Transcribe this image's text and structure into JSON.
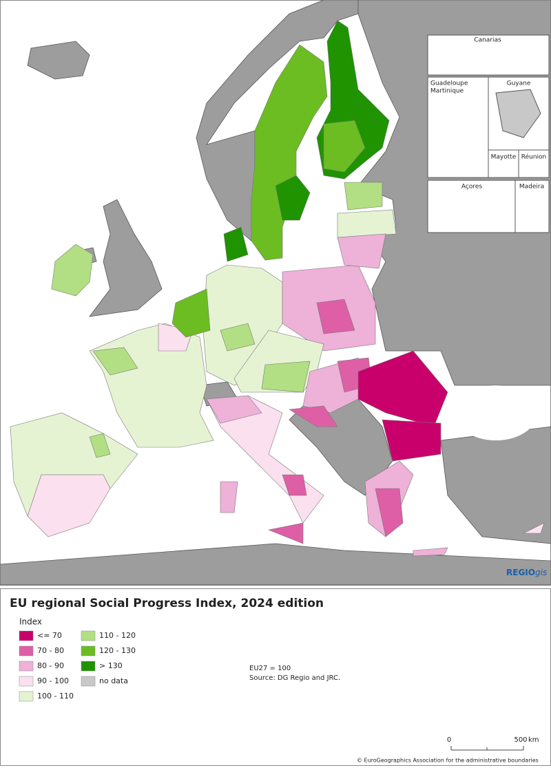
{
  "map": {
    "insets": [
      "Canarias",
      "Guadeloupe",
      "Martinique",
      "Guyane",
      "Mayotte",
      "Réunion",
      "Açores",
      "Madeira"
    ],
    "logo": {
      "regio": "REGIO",
      "gis": "gis"
    }
  },
  "legend": {
    "title": "EU regional Social Progress Index, 2024 edition",
    "heading": "Index",
    "items": [
      {
        "label": "<= 70",
        "color": "#c9006b"
      },
      {
        "label": "70 - 80",
        "color": "#de5fa6"
      },
      {
        "label": "80 - 90",
        "color": "#eeb1d8"
      },
      {
        "label": "90 - 100",
        "color": "#fbe0ef"
      },
      {
        "label": "100 - 110",
        "color": "#e6f3d3"
      },
      {
        "label": "110 - 120",
        "color": "#b2df83"
      },
      {
        "label": "120 - 130",
        "color": "#6bbd22"
      },
      {
        "label": "> 130",
        "color": "#1f9300"
      },
      {
        "label": "no data",
        "color": "#c8c8c8"
      }
    ]
  },
  "notes": [
    "EU27 = 100",
    "Source: DG Regio and JRC."
  ],
  "scale": {
    "labels": [
      "0",
      "500"
    ],
    "unit": "km"
  },
  "copyright": "© EuroGeographics Association for the administrative boundaries"
}
